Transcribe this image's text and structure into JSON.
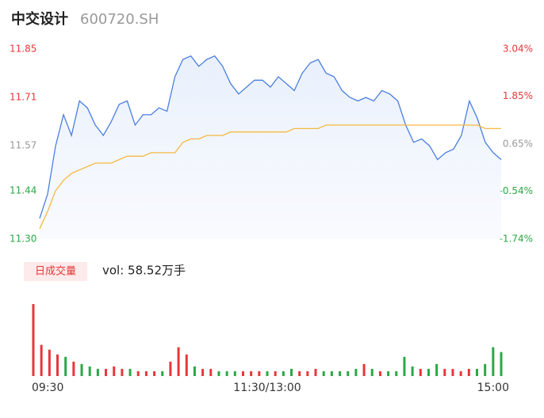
{
  "chart_data": [
    {
      "type": "line",
      "title": "中交设计",
      "subtitle": "600720.SH",
      "xlim": [
        0,
        58
      ],
      "ylim": [
        11.3,
        11.85
      ],
      "yticks": [
        {
          "value": 11.3,
          "label": "11.30"
        },
        {
          "value": 11.44,
          "label": "11.44"
        },
        {
          "value": 11.57,
          "label": "11.57"
        },
        {
          "value": 11.71,
          "label": "11.71"
        },
        {
          "value": 11.85,
          "label": "11.85"
        }
      ],
      "y2lim": [
        -1.74,
        3.04
      ],
      "y2ticks": [
        {
          "value": -1.74,
          "label": "-1.74%"
        },
        {
          "value": -0.54,
          "label": "-0.54%"
        },
        {
          "value": 0.65,
          "label": "0.65%"
        },
        {
          "value": 1.85,
          "label": "1.85%"
        },
        {
          "value": 3.04,
          "label": "3.04%"
        }
      ],
      "series": [
        {
          "color": "#4a7fe0",
          "area": true,
          "values": [
            11.36,
            11.43,
            11.57,
            11.66,
            11.6,
            11.7,
            11.68,
            11.63,
            11.6,
            11.64,
            11.69,
            11.7,
            11.63,
            11.66,
            11.66,
            11.68,
            11.67,
            11.77,
            11.82,
            11.83,
            11.8,
            11.82,
            11.83,
            11.8,
            11.75,
            11.72,
            11.74,
            11.76,
            11.76,
            11.74,
            11.77,
            11.75,
            11.73,
            11.78,
            11.81,
            11.82,
            11.78,
            11.77,
            11.73,
            11.71,
            11.7,
            11.71,
            11.7,
            11.73,
            11.72,
            11.7,
            11.63,
            11.58,
            11.59,
            11.57,
            11.53,
            11.55,
            11.56,
            11.6,
            11.7,
            11.65,
            11.58,
            11.55,
            11.53
          ]
        },
        {
          "color": "#f5b942",
          "area": false,
          "values": [
            11.33,
            11.38,
            11.44,
            11.47,
            11.49,
            11.5,
            11.51,
            11.52,
            11.52,
            11.52,
            11.53,
            11.54,
            11.54,
            11.54,
            11.55,
            11.55,
            11.55,
            11.55,
            11.58,
            11.59,
            11.59,
            11.6,
            11.6,
            11.6,
            11.61,
            11.61,
            11.61,
            11.61,
            11.61,
            11.61,
            11.61,
            11.61,
            11.62,
            11.62,
            11.62,
            11.62,
            11.63,
            11.63,
            11.63,
            11.63,
            11.63,
            11.63,
            11.63,
            11.63,
            11.63,
            11.63,
            11.63,
            11.63,
            11.63,
            11.63,
            11.63,
            11.63,
            11.63,
            11.63,
            11.63,
            11.63,
            11.62,
            11.62,
            11.62
          ]
        }
      ]
    },
    {
      "type": "bar",
      "button": "日成交量",
      "annotation": "vol: 58.52万手",
      "up_color": "#e8363a",
      "down_color": "#2aa845",
      "xlim": [
        0,
        58
      ],
      "ylim": [
        0,
        3.2
      ],
      "xticks": [
        {
          "value": 0,
          "label": "09:30"
        },
        {
          "value": 29,
          "label": "11:30/13:00"
        },
        {
          "value": 58,
          "label": "15:00"
        }
      ],
      "values": [
        3.0,
        1.3,
        1.1,
        0.9,
        0.8,
        0.6,
        0.5,
        0.4,
        0.3,
        0.3,
        0.4,
        0.3,
        0.3,
        0.2,
        0.2,
        0.2,
        0.2,
        0.6,
        1.2,
        0.9,
        0.4,
        0.3,
        0.3,
        0.2,
        0.2,
        0.2,
        0.2,
        0.2,
        0.2,
        0.2,
        0.2,
        0.2,
        0.3,
        0.2,
        0.2,
        0.3,
        0.2,
        0.2,
        0.2,
        0.2,
        0.3,
        0.5,
        0.3,
        0.2,
        0.2,
        0.2,
        0.8,
        0.4,
        0.3,
        0.3,
        0.5,
        0.3,
        0.3,
        0.2,
        0.3,
        0.3,
        0.5,
        1.2,
        1.0
      ]
    }
  ]
}
